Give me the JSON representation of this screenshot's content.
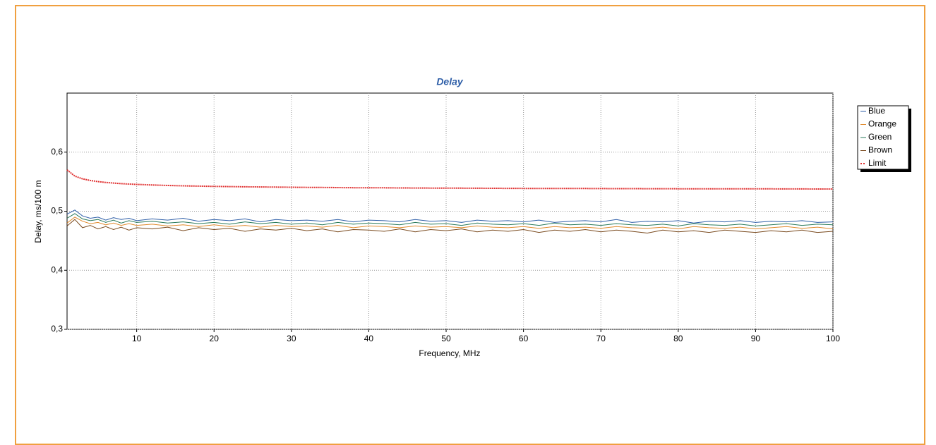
{
  "chart_data": {
    "type": "line",
    "title": "Delay",
    "xlabel": "Frequency, MHz",
    "ylabel": "Delay, ms/100 m",
    "x": [
      1,
      2,
      3,
      4,
      5,
      6,
      7,
      8,
      9,
      10,
      12,
      14,
      16,
      18,
      20,
      22,
      24,
      26,
      28,
      30,
      32,
      34,
      36,
      38,
      40,
      42,
      44,
      46,
      48,
      50,
      52,
      54,
      56,
      58,
      60,
      62,
      64,
      66,
      68,
      70,
      72,
      74,
      76,
      78,
      80,
      82,
      84,
      86,
      88,
      90,
      92,
      94,
      96,
      98,
      100
    ],
    "xlim": [
      1,
      100
    ],
    "xticks": [
      10,
      20,
      30,
      40,
      50,
      60,
      70,
      80,
      90,
      100
    ],
    "ylim": [
      0.3,
      0.7
    ],
    "yticks": [
      {
        "value": 0.3,
        "label": "0,3"
      },
      {
        "value": 0.4,
        "label": "0,4"
      },
      {
        "value": 0.5,
        "label": "0,5"
      },
      {
        "value": 0.6,
        "label": "0,6"
      }
    ],
    "grid": true,
    "legend": "right",
    "series": [
      {
        "name": "Blue",
        "color": "#2f5fa8",
        "line_style": "solid",
        "values": [
          0.495,
          0.502,
          0.492,
          0.488,
          0.49,
          0.485,
          0.489,
          0.486,
          0.488,
          0.484,
          0.487,
          0.485,
          0.488,
          0.483,
          0.486,
          0.484,
          0.487,
          0.482,
          0.486,
          0.484,
          0.485,
          0.483,
          0.486,
          0.482,
          0.485,
          0.484,
          0.482,
          0.486,
          0.483,
          0.484,
          0.481,
          0.485,
          0.483,
          0.484,
          0.482,
          0.485,
          0.481,
          0.483,
          0.484,
          0.482,
          0.486,
          0.481,
          0.483,
          0.482,
          0.484,
          0.48,
          0.483,
          0.482,
          0.484,
          0.481,
          0.483,
          0.482,
          0.484,
          0.481,
          0.482
        ]
      },
      {
        "name": "Orange",
        "color": "#e08a2c",
        "line_style": "solid",
        "values": [
          0.48,
          0.49,
          0.483,
          0.479,
          0.481,
          0.477,
          0.48,
          0.476,
          0.479,
          0.476,
          0.478,
          0.475,
          0.477,
          0.474,
          0.477,
          0.474,
          0.476,
          0.473,
          0.476,
          0.474,
          0.475,
          0.473,
          0.476,
          0.472,
          0.475,
          0.474,
          0.472,
          0.475,
          0.473,
          0.474,
          0.472,
          0.475,
          0.473,
          0.472,
          0.474,
          0.471,
          0.474,
          0.472,
          0.473,
          0.471,
          0.474,
          0.472,
          0.471,
          0.473,
          0.47,
          0.474,
          0.472,
          0.471,
          0.473,
          0.47,
          0.472,
          0.474,
          0.471,
          0.473,
          0.47
        ]
      },
      {
        "name": "Green",
        "color": "#2a7a5a",
        "line_style": "solid",
        "values": [
          0.488,
          0.496,
          0.487,
          0.484,
          0.486,
          0.481,
          0.485,
          0.48,
          0.484,
          0.481,
          0.483,
          0.48,
          0.482,
          0.479,
          0.481,
          0.478,
          0.482,
          0.479,
          0.481,
          0.478,
          0.48,
          0.477,
          0.481,
          0.478,
          0.48,
          0.479,
          0.477,
          0.481,
          0.478,
          0.479,
          0.476,
          0.48,
          0.478,
          0.477,
          0.479,
          0.476,
          0.48,
          0.477,
          0.478,
          0.476,
          0.479,
          0.477,
          0.476,
          0.478,
          0.475,
          0.479,
          0.477,
          0.476,
          0.478,
          0.475,
          0.477,
          0.479,
          0.476,
          0.478,
          0.477
        ]
      },
      {
        "name": "Brown",
        "color": "#7a4a1e",
        "line_style": "solid",
        "values": [
          0.475,
          0.486,
          0.472,
          0.476,
          0.47,
          0.474,
          0.469,
          0.473,
          0.468,
          0.472,
          0.47,
          0.473,
          0.467,
          0.472,
          0.469,
          0.471,
          0.466,
          0.47,
          0.468,
          0.471,
          0.467,
          0.47,
          0.465,
          0.469,
          0.468,
          0.466,
          0.47,
          0.465,
          0.469,
          0.467,
          0.47,
          0.465,
          0.468,
          0.466,
          0.469,
          0.464,
          0.468,
          0.466,
          0.469,
          0.465,
          0.468,
          0.466,
          0.463,
          0.468,
          0.465,
          0.467,
          0.464,
          0.468,
          0.466,
          0.464,
          0.467,
          0.465,
          0.468,
          0.464,
          0.466
        ]
      },
      {
        "name": "Limit",
        "color": "#e03030",
        "line_style": "dotted",
        "values": [
          0.57,
          0.5595,
          0.5548,
          0.552,
          0.5501,
          0.5487,
          0.5476,
          0.5467,
          0.546,
          0.5454,
          0.5444,
          0.5436,
          0.543,
          0.5425,
          0.542,
          0.5417,
          0.5413,
          0.5411,
          0.5408,
          0.5406,
          0.5404,
          0.5402,
          0.54,
          0.5398,
          0.5397,
          0.5396,
          0.5394,
          0.5393,
          0.5392,
          0.5391,
          0.539,
          0.5389,
          0.5388,
          0.5387,
          0.5386,
          0.5386,
          0.5385,
          0.5384,
          0.5384,
          0.5383,
          0.5382,
          0.5382,
          0.5381,
          0.5381,
          0.538,
          0.538,
          0.5379,
          0.5379,
          0.5378,
          0.5378,
          0.5378,
          0.5377,
          0.5377,
          0.5376,
          0.5376
        ]
      }
    ]
  }
}
